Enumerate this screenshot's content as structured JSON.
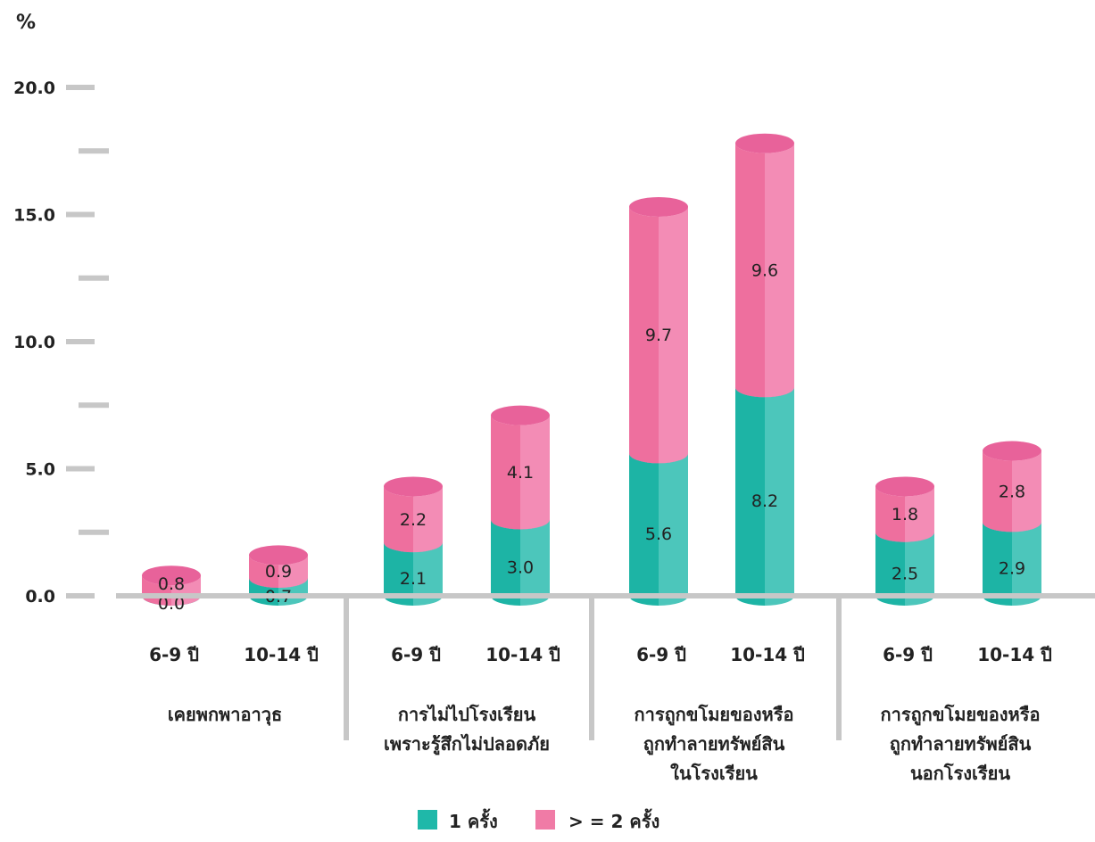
{
  "chart_data": {
    "type": "bar",
    "stacked": true,
    "ylabel": "%",
    "ylim": [
      0,
      20
    ],
    "yticks": [
      "0.0",
      "5.0",
      "10.0",
      "15.0",
      "20.0"
    ],
    "categories": [
      "6-9 ปี",
      "10-14 ปี",
      "6-9 ปี",
      "10-14 ปี",
      "6-9 ปี",
      "10-14 ปี",
      "6-9 ปี",
      "10-14 ปี"
    ],
    "groups": [
      {
        "lines": [
          "เคยพกพาอาวุธ"
        ]
      },
      {
        "lines": [
          "การไม่ไปโรงเรียน",
          "เพราะรู้สึกไม่ปลอดภัย"
        ]
      },
      {
        "lines": [
          "การถูกขโมยของหรือ",
          "ถูกทำลายทรัพย์สิน",
          "ในโรงเรียน"
        ]
      },
      {
        "lines": [
          "การถูกขโมยของหรือ",
          "ถูกทำลายทรัพย์สิน",
          "นอกโรงเรียน"
        ]
      }
    ],
    "series": [
      {
        "name": "1 ครั้ง",
        "color": "#1fb8a9",
        "values": [
          0.0,
          0.7,
          2.1,
          3.0,
          5.6,
          8.2,
          2.5,
          2.9
        ],
        "labels": [
          "0.0",
          "0.7",
          "2.1",
          "3.0",
          "5.6",
          "8.2",
          "2.5",
          "2.9"
        ]
      },
      {
        "name": "> = 2 ครั้ง",
        "color": "#f07ba6",
        "values": [
          0.8,
          0.9,
          2.2,
          4.1,
          9.7,
          9.6,
          1.8,
          2.8
        ],
        "labels": [
          "0.8",
          "0.9",
          "2.2",
          "4.1",
          "9.7",
          "9.6",
          "1.8",
          "2.8"
        ]
      }
    ],
    "legend": "bottom",
    "grid": false
  }
}
